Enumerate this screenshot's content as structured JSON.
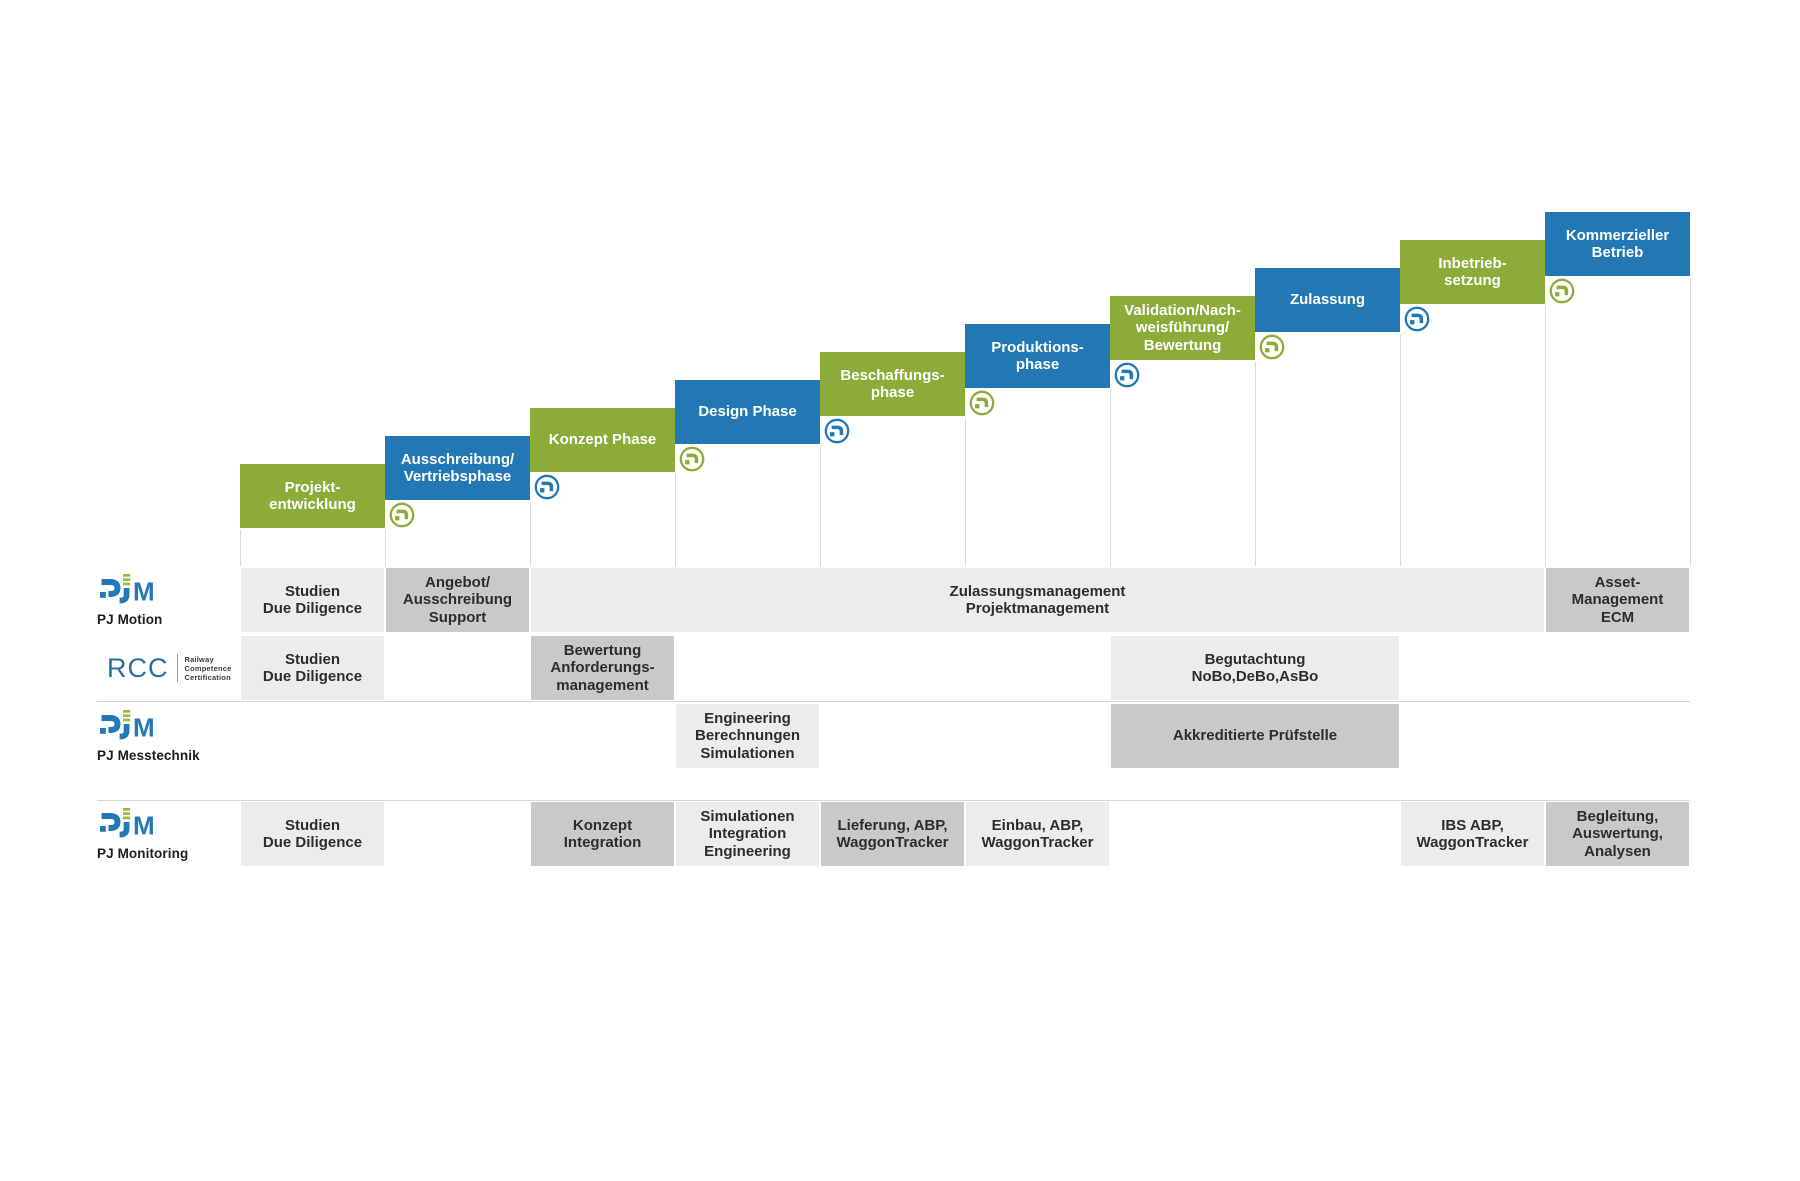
{
  "colors": {
    "green": "#8cab39",
    "blue": "#2278b5",
    "logo_blue": "#2478b8",
    "logo_green": "#95bf3b",
    "rcc_blue": "#2b6f9d",
    "cell_light": "#ececec",
    "cell_dark": "#c9c9c9",
    "line_gray": "#d6d6d6"
  },
  "phases": [
    {
      "label_lines": [
        "Projekt-",
        "entwicklung"
      ],
      "color": "green"
    },
    {
      "label_lines": [
        "Ausschreibung/",
        "Vertriebsphase"
      ],
      "color": "blue"
    },
    {
      "label_lines": [
        "Konzept Phase"
      ],
      "color": "green"
    },
    {
      "label_lines": [
        "Design Phase"
      ],
      "color": "blue"
    },
    {
      "label_lines": [
        "Beschaffungs-",
        "phase"
      ],
      "color": "green"
    },
    {
      "label_lines": [
        "Produktions-",
        "phase"
      ],
      "color": "blue"
    },
    {
      "label_lines": [
        "Validation/Nach-",
        "weisführung/",
        "Bewertung"
      ],
      "color": "green"
    },
    {
      "label_lines": [
        "Zulassung"
      ],
      "color": "blue"
    },
    {
      "label_lines": [
        "Inbetrieb-",
        "setzung"
      ],
      "color": "green"
    },
    {
      "label_lines": [
        "Kommerzieller",
        "Betrieb"
      ],
      "color": "blue"
    }
  ],
  "rows": [
    {
      "logo": "pjm",
      "logo_label": "PJ Motion",
      "cells": [
        {
          "col": 0,
          "span": 1,
          "shade": "light",
          "lines": [
            "Studien",
            "Due Diligence"
          ]
        },
        {
          "col": 1,
          "span": 1,
          "shade": "dark",
          "lines": [
            "Angebot/",
            "Ausschreibung",
            "Support"
          ]
        },
        {
          "col": 2,
          "span": 7,
          "shade": "light",
          "lines": [
            "Zulassungsmanagement",
            "Projektmanagement"
          ]
        },
        {
          "col": 9,
          "span": 1,
          "shade": "dark",
          "lines": [
            "Asset-",
            "Management",
            "ECM"
          ]
        }
      ]
    },
    {
      "logo": "rcc",
      "logo_label": "RCC",
      "cells": [
        {
          "col": 0,
          "span": 1,
          "shade": "light",
          "lines": [
            "Studien",
            "Due Diligence"
          ]
        },
        {
          "col": 2,
          "span": 1,
          "shade": "dark",
          "lines": [
            "Bewertung",
            "Anforderungs-",
            "management"
          ]
        },
        {
          "col": 6,
          "span": 2,
          "shade": "light",
          "lines": [
            "Begutachtung",
            "NoBo,DeBo,AsBo"
          ]
        }
      ]
    },
    {
      "logo": "pjm",
      "logo_label": "PJ Messtechnik",
      "cells": [
        {
          "col": 3,
          "span": 1,
          "shade": "light",
          "lines": [
            "Engineering",
            "Berechnungen",
            "Simulationen"
          ]
        },
        {
          "col": 6,
          "span": 2,
          "shade": "dark",
          "lines": [
            "Akkreditierte Prüfstelle"
          ]
        }
      ]
    },
    {
      "logo": "pjm",
      "logo_label": "PJ Monitoring",
      "cells": [
        {
          "col": 0,
          "span": 1,
          "shade": "light",
          "lines": [
            "Studien",
            "Due Diligence"
          ]
        },
        {
          "col": 2,
          "span": 1,
          "shade": "dark",
          "lines": [
            "Konzept",
            "Integration"
          ]
        },
        {
          "col": 3,
          "span": 1,
          "shade": "light",
          "lines": [
            "Simulationen",
            "Integration",
            "Engineering"
          ]
        },
        {
          "col": 4,
          "span": 1,
          "shade": "dark",
          "lines": [
            "Lieferung, ABP,",
            "WaggonTracker"
          ]
        },
        {
          "col": 5,
          "span": 1,
          "shade": "light",
          "lines": [
            "Einbau, ABP,",
            "WaggonTracker"
          ]
        },
        {
          "col": 8,
          "span": 1,
          "shade": "light",
          "lines": [
            "IBS ABP,",
            "WaggonTracker"
          ]
        },
        {
          "col": 9,
          "span": 1,
          "shade": "dark",
          "lines": [
            "Begleitung,",
            "Auswertung,",
            "Analysen"
          ]
        }
      ]
    }
  ],
  "logos": {
    "pjm_m": "M",
    "rcc_name": "RCC",
    "rcc_sub": [
      "Railway",
      "Competence",
      "Certification"
    ]
  }
}
